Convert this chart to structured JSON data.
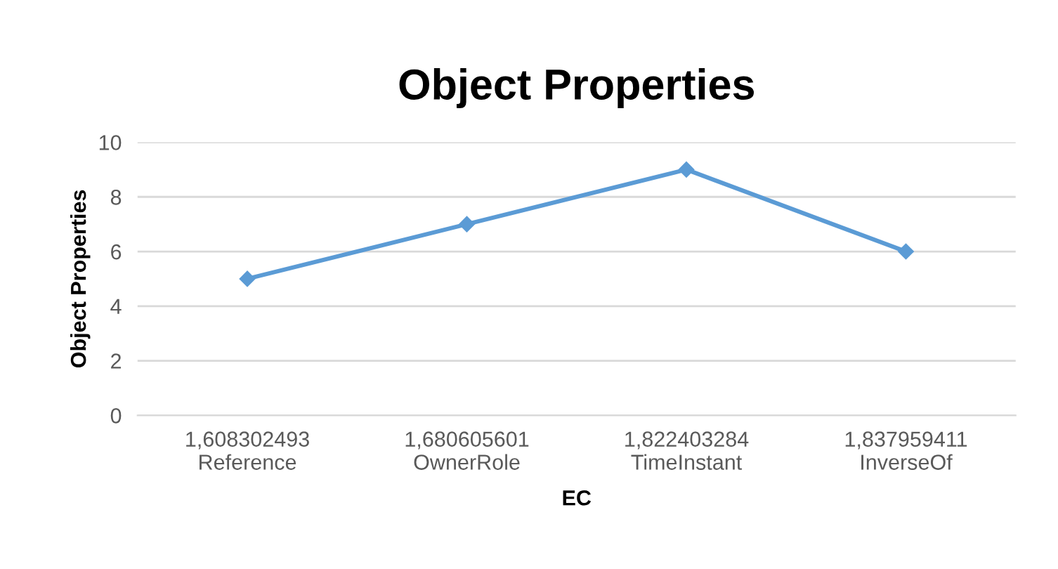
{
  "chart_data": {
    "type": "line",
    "title": "Object Properties",
    "xlabel": "EC",
    "ylabel": "Object Properties",
    "categories": [
      "1,608302493\nReference",
      "1,680605601\nOwnerRole",
      "1,822403284\nTimeInstant",
      "1,837959411\nInverseOf"
    ],
    "series": [
      {
        "color": "#5b9bd5",
        "values": [
          5,
          7,
          9,
          6
        ]
      }
    ],
    "ylim": [
      0,
      10
    ],
    "yticks": [
      0,
      2,
      4,
      6,
      8,
      10
    ],
    "grid": "y",
    "marker": "diamond",
    "line_style": "solid"
  }
}
